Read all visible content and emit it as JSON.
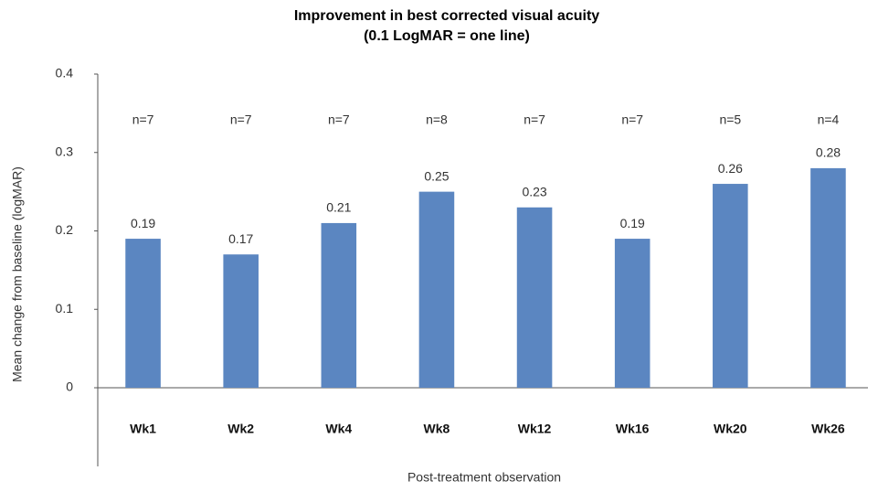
{
  "chart_data": {
    "type": "bar",
    "title": "Improvement in best corrected visual acuity",
    "subtitle": "(0.1 LogMAR = one line)",
    "y_label": "Mean change from baseline (logMAR)",
    "x_label": "Post-treatment observation",
    "categories": [
      "Wk1",
      "Wk2",
      "Wk4",
      "Wk8",
      "Wk12",
      "Wk16",
      "Wk20",
      "Wk26"
    ],
    "values": [
      0.19,
      0.17,
      0.21,
      0.25,
      0.23,
      0.19,
      0.26,
      0.28
    ],
    "n_labels": [
      "n=7",
      "n=7",
      "n=7",
      "n=8",
      "n=7",
      "n=7",
      "n=5",
      "n=4"
    ],
    "color": "#5b86c1",
    "ylim": [
      0,
      0.4
    ],
    "yticks": [
      0,
      0.1,
      0.2,
      0.3,
      0.4
    ],
    "grid": false
  }
}
